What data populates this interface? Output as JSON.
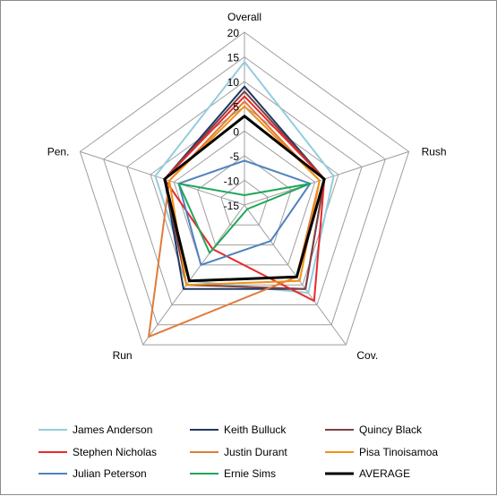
{
  "chart_data": {
    "type": "radar",
    "axes": [
      "Overall",
      "Rush",
      "Cov.",
      "Run",
      "Pen."
    ],
    "rlim": [
      -15,
      20
    ],
    "ticks": [
      20,
      15,
      10,
      5,
      0,
      -5,
      -10,
      -15
    ],
    "tick_labels": [
      "20",
      "15",
      "10",
      "5",
      "0",
      "-5",
      "-10",
      "-15"
    ],
    "grid": true,
    "legend_position": "bottom",
    "series": [
      {
        "name": "James Anderson",
        "color": "#93cddd",
        "values": [
          14,
          4,
          7,
          4,
          4
        ]
      },
      {
        "name": "Keith Bulluck",
        "color": "#1f3864",
        "values": [
          9,
          2,
          6,
          6,
          2
        ]
      },
      {
        "name": "Quincy Black",
        "color": "#7f3f3f",
        "values": [
          8,
          2,
          6,
          5,
          2
        ]
      },
      {
        "name": "Stephen Nicholas",
        "color": "#e8282a",
        "values": [
          7,
          2,
          9,
          -4,
          2
        ]
      },
      {
        "name": "Justin Durant",
        "color": "#e07b3a",
        "values": [
          6,
          1,
          3,
          18,
          1
        ]
      },
      {
        "name": "Pisa Tinoisamoa",
        "color": "#f29111",
        "values": [
          5,
          1,
          4,
          5,
          1
        ]
      },
      {
        "name": "Julian Peterson",
        "color": "#4f81bd",
        "values": [
          -6,
          -1,
          -6,
          0,
          -1
        ]
      },
      {
        "name": "Ernie Sims",
        "color": "#1fa65a",
        "values": [
          -13,
          -1,
          -14,
          -3,
          -1
        ]
      },
      {
        "name": "AVERAGE",
        "color": "#000000",
        "values": [
          3,
          2,
          3,
          4,
          2
        ]
      }
    ]
  }
}
